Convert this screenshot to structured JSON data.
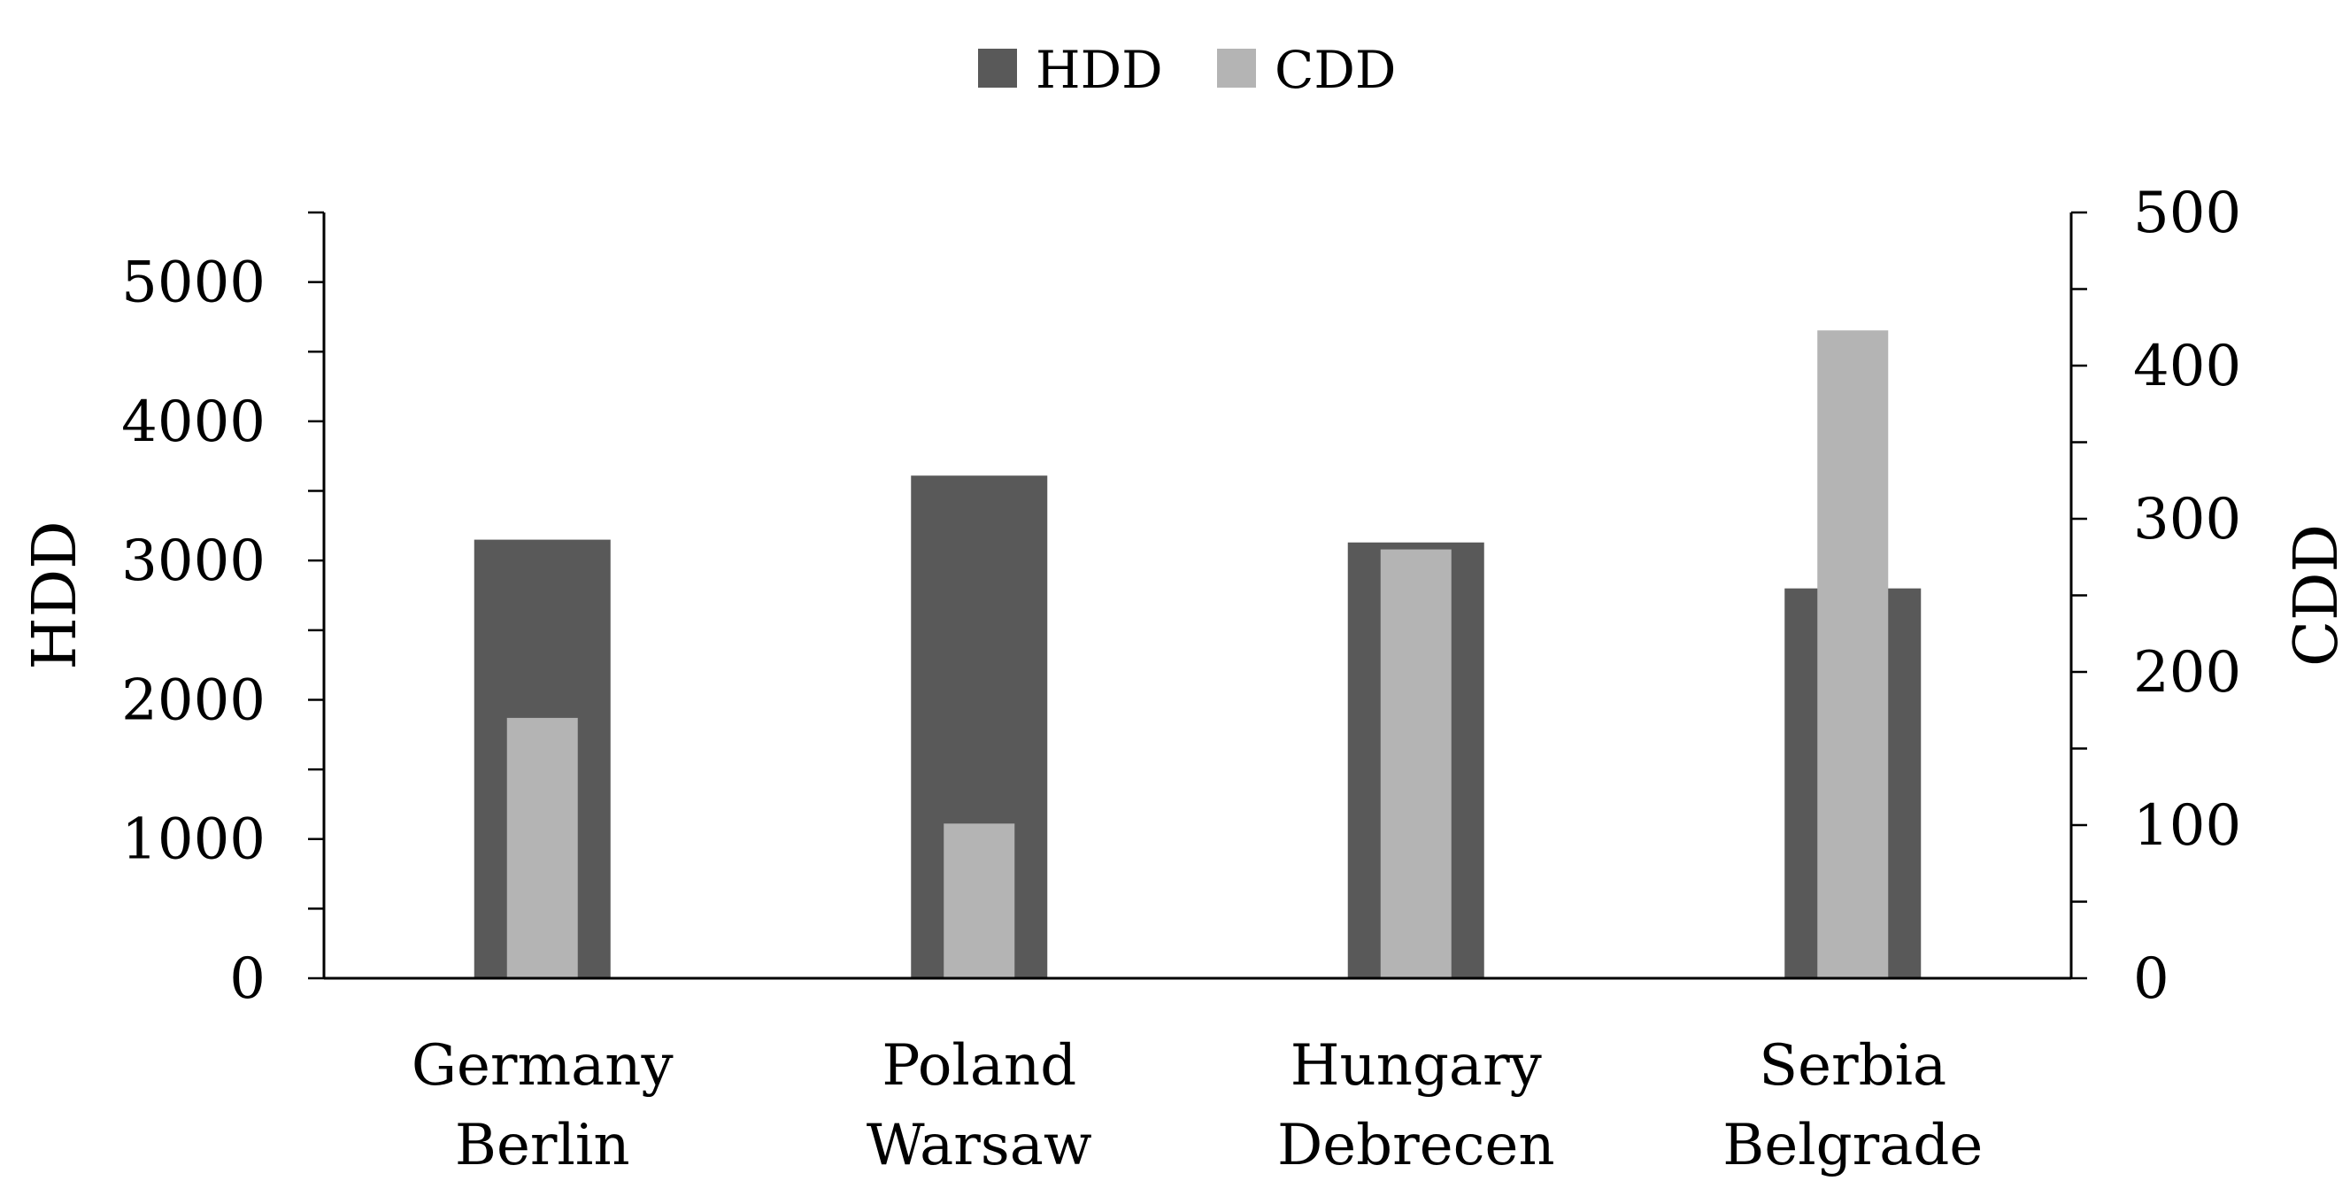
{
  "chart_data": {
    "type": "bar",
    "title": "",
    "categories": [
      [
        "Germany",
        "Berlin"
      ],
      [
        "Poland",
        "Warsaw"
      ],
      [
        "Hungary",
        "Debrecen"
      ],
      [
        "Serbia",
        "Belgrade"
      ]
    ],
    "series": [
      {
        "name": "HDD",
        "axis": "left",
        "color": "#595959",
        "values": [
          3150,
          3610,
          3130,
          2800
        ]
      },
      {
        "name": "CDD",
        "axis": "right",
        "color": "#b4b4b4",
        "values": [
          170,
          101,
          280,
          423
        ]
      }
    ],
    "ylabel_left": "HDD",
    "ylabel_right": "CDD",
    "ylim_left": [
      0,
      5500
    ],
    "yticks_left": [
      0,
      1000,
      2000,
      3000,
      4000,
      5000
    ],
    "ylim_right": [
      0,
      500
    ],
    "yticks_right": [
      0,
      100,
      200,
      300,
      400,
      500
    ],
    "legend_position": "top-center",
    "grid": false
  }
}
